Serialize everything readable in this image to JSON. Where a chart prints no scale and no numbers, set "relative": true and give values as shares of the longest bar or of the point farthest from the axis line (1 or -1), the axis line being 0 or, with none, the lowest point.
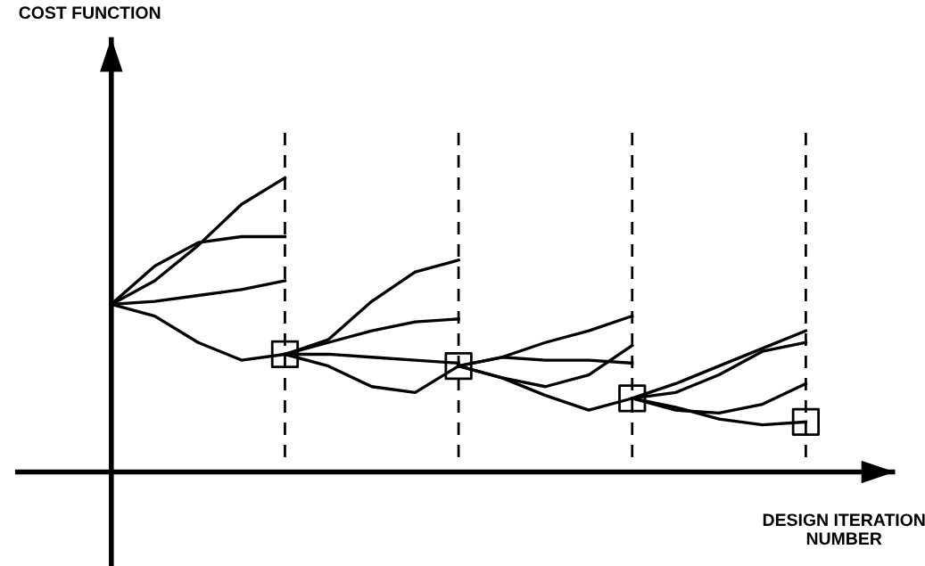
{
  "chart_data": {
    "type": "line",
    "relative": true,
    "xlabel": "DESIGN ITERATION\nNUMBER",
    "annotations": [
      "COST FUNCTION"
    ],
    "tick_labels": false,
    "grid": "x",
    "line_style": "solid",
    "categories": [
      null,
      null,
      null,
      null,
      null,
      null,
      null,
      null,
      null,
      null,
      null,
      null,
      null,
      null,
      null,
      null,
      null
    ],
    "series": [
      {
        "color": "#000000",
        "values": [
          0.57,
          0.65,
          0.77,
          0.91,
          1.0,
          null,
          null,
          null,
          null,
          null,
          null,
          null,
          null,
          null,
          null,
          null,
          null
        ]
      },
      {
        "color": "#000000",
        "values": [
          0.57,
          0.7,
          0.78,
          0.8,
          0.8,
          null,
          null,
          null,
          null,
          null,
          null,
          null,
          null,
          null,
          null,
          null,
          null
        ]
      },
      {
        "color": "#000000",
        "values": [
          0.57,
          0.58,
          0.6,
          0.62,
          0.65,
          null,
          null,
          null,
          null,
          null,
          null,
          null,
          null,
          null,
          null,
          null,
          null
        ]
      },
      {
        "color": "#000000",
        "values": [
          0.57,
          0.53,
          0.44,
          0.38,
          0.4,
          null,
          null,
          null,
          null,
          null,
          null,
          null,
          null,
          null,
          null,
          null,
          null
        ]
      },
      {
        "color": "#000000",
        "values": [
          null,
          null,
          null,
          null,
          0.4,
          0.45,
          0.58,
          0.68,
          0.72,
          null,
          null,
          null,
          null,
          null,
          null,
          null,
          null
        ]
      },
      {
        "color": "#000000",
        "values": [
          null,
          null,
          null,
          null,
          0.4,
          0.44,
          0.48,
          0.51,
          0.52,
          null,
          null,
          null,
          null,
          null,
          null,
          null,
          null
        ]
      },
      {
        "color": "#000000",
        "values": [
          null,
          null,
          null,
          null,
          0.4,
          0.4,
          0.39,
          0.38,
          0.37,
          null,
          null,
          null,
          null,
          null,
          null,
          null,
          null
        ]
      },
      {
        "color": "#000000",
        "values": [
          null,
          null,
          null,
          null,
          0.4,
          0.36,
          0.29,
          0.27,
          0.36,
          null,
          null,
          null,
          null,
          null,
          null,
          null,
          null
        ]
      },
      {
        "color": "#000000",
        "values": [
          null,
          null,
          null,
          null,
          null,
          null,
          null,
          null,
          0.36,
          0.39,
          0.44,
          0.48,
          0.53,
          null,
          null,
          null,
          null
        ]
      },
      {
        "color": "#000000",
        "values": [
          null,
          null,
          null,
          null,
          null,
          null,
          null,
          null,
          0.36,
          0.39,
          0.38,
          0.38,
          0.37,
          null,
          null,
          null,
          null
        ]
      },
      {
        "color": "#000000",
        "values": [
          null,
          null,
          null,
          null,
          null,
          null,
          null,
          null,
          0.36,
          0.32,
          0.29,
          0.33,
          0.43,
          null,
          null,
          null,
          null
        ]
      },
      {
        "color": "#000000",
        "values": [
          null,
          null,
          null,
          null,
          null,
          null,
          null,
          null,
          0.36,
          0.32,
          0.26,
          0.21,
          0.25,
          null,
          null,
          null,
          null
        ]
      },
      {
        "color": "#000000",
        "values": [
          null,
          null,
          null,
          null,
          null,
          null,
          null,
          null,
          null,
          null,
          null,
          null,
          0.25,
          0.3,
          0.36,
          0.42,
          0.48
        ]
      },
      {
        "color": "#000000",
        "values": [
          null,
          null,
          null,
          null,
          null,
          null,
          null,
          null,
          null,
          null,
          null,
          null,
          0.25,
          0.27,
          0.33,
          0.41,
          0.44
        ]
      },
      {
        "color": "#000000",
        "values": [
          null,
          null,
          null,
          null,
          null,
          null,
          null,
          null,
          null,
          null,
          null,
          null,
          0.25,
          0.21,
          0.2,
          0.23,
          0.3
        ]
      },
      {
        "color": "#000000",
        "values": [
          null,
          null,
          null,
          null,
          null,
          null,
          null,
          null,
          null,
          null,
          null,
          null,
          0.25,
          0.22,
          0.18,
          0.16,
          0.17
        ]
      },
      {
        "color": "#000000",
        "marker": "square",
        "values": [
          null,
          null,
          null,
          null,
          0.4,
          null,
          null,
          null,
          0.36,
          null,
          null,
          null,
          0.25,
          null,
          null,
          null,
          0.17
        ]
      }
    ]
  }
}
